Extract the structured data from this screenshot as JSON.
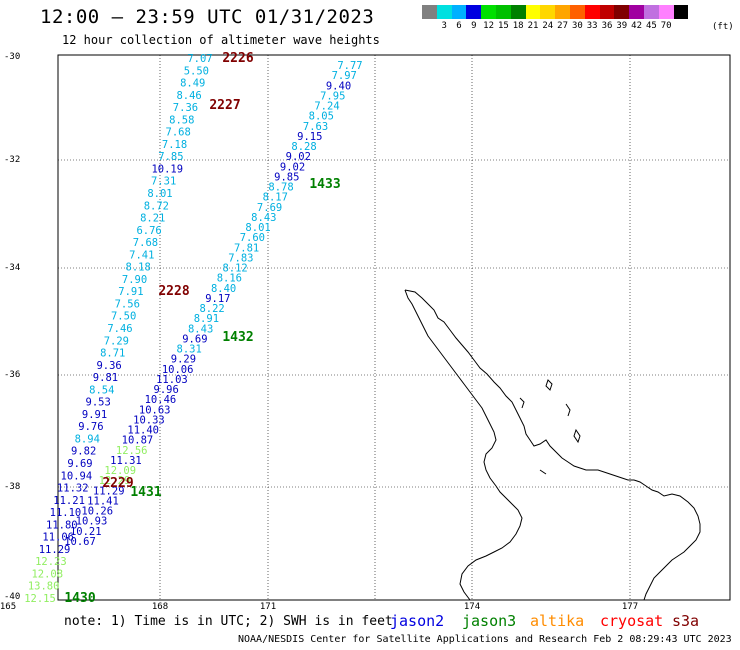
{
  "title": "12:00 — 23:59 UTC 01/31/2023",
  "subtitle": "12 hour collection of altimeter wave heights",
  "legend": {
    "colors": [
      "#808080",
      "#00e0e0",
      "#00b0ff",
      "#0000e0",
      "#00e000",
      "#00c000",
      "#008000",
      "#ffff00",
      "#ffd700",
      "#ffa500",
      "#ff6000",
      "#ff0000",
      "#c00000",
      "#800000",
      "#a000a0",
      "#c070e0",
      "#ff80ff",
      "#000000"
    ],
    "labels": [
      "3",
      "6",
      "9",
      "12",
      "15",
      "18",
      "21",
      "24",
      "27",
      "30",
      "33",
      "36",
      "39",
      "42",
      "45",
      "70"
    ],
    "unit": "(ft)"
  },
  "axes": {
    "lat_labels": [
      "-30",
      "-32",
      "-34",
      "-36",
      "-38",
      "-40"
    ],
    "lon_labels": [
      "165",
      "168",
      "171",
      "174",
      "177"
    ]
  },
  "tracks": [
    {
      "name": "track-west",
      "values": [
        "7.07",
        "5.50",
        "8.49",
        "8.46",
        "7.36",
        "8.58",
        "7.68",
        "7.18",
        "7.85",
        "10.19",
        "7.31",
        "8.01",
        "8.72",
        "8.21",
        "6.76",
        "7.68",
        "7.41",
        "8.18",
        "7.90",
        "7.91",
        "7.56",
        "7.50",
        "7.46",
        "7.29",
        "8.71",
        "9.36",
        "9.81",
        "8.54",
        "9.53",
        "9.91",
        "9.76",
        "8.94",
        "9.82",
        "9.69",
        "10.94",
        "11.32",
        "11.21",
        "11.10",
        "11.80",
        "11.06",
        "11.29",
        "12.23",
        "12.08",
        "13.80",
        "12.15"
      ]
    },
    {
      "name": "track-east",
      "values": [
        "7.77",
        "7.97",
        "9.40",
        "7.95",
        "7.24",
        "8.05",
        "7.63",
        "9.15",
        "8.28",
        "9.02",
        "9.02",
        "9.85",
        "8.78",
        "8.17",
        "7.69",
        "8.43",
        "8.01",
        "7.60",
        "7.81",
        "7.83",
        "8.12",
        "8.16",
        "8.40",
        "9.17",
        "8.22",
        "8.91",
        "8.43",
        "9.69",
        "8.31",
        "9.29",
        "10.06",
        "11.03",
        "9.96",
        "10.46",
        "10.63",
        "10.33",
        "11.40",
        "10.87",
        "12.56",
        "11.31",
        "12.09",
        "12.29",
        "11.29",
        "11.41",
        "10.26",
        "10.93",
        "10.21",
        "10.67"
      ]
    }
  ],
  "time_labels": [
    "2226",
    "2227",
    "2228",
    "2229",
    "1433",
    "1432",
    "1431",
    "1430"
  ],
  "note": "note: 1) Time is in UTC; 2) SWH is in feet",
  "satellites": [
    {
      "name": "jason2",
      "color": "#0000e0"
    },
    {
      "name": "jason3",
      "color": "#008000"
    },
    {
      "name": "altika",
      "color": "#ff8c00"
    },
    {
      "name": "cryosat",
      "color": "#ff0000"
    },
    {
      "name": "s3a",
      "color": "#800000"
    }
  ],
  "credit": "NOAA/NESDIS Center for Satellite Applications and Research   Feb  2 08:29:43 UTC 2023"
}
